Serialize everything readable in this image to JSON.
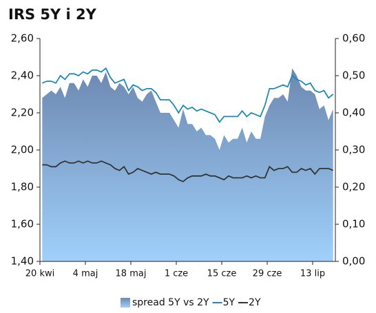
{
  "chart_data": {
    "type": "line",
    "title": "IRS 5Y i 2Y",
    "categories": [
      "20 kwi",
      null,
      null,
      null,
      null,
      null,
      null,
      null,
      null,
      null,
      "4 maj",
      null,
      null,
      null,
      null,
      null,
      null,
      null,
      null,
      null,
      "18 maj",
      null,
      null,
      null,
      null,
      null,
      null,
      null,
      null,
      null,
      "1 cze",
      null,
      null,
      null,
      null,
      null,
      null,
      null,
      null,
      null,
      "15 cze",
      null,
      null,
      null,
      null,
      null,
      null,
      null,
      null,
      null,
      "29 cze",
      null,
      null,
      null,
      null,
      null,
      null,
      null,
      null,
      null,
      "13 lip",
      null,
      null,
      null,
      null
    ],
    "series": [
      {
        "name": "spread 5Y vs 2Y",
        "type": "area",
        "axis": "y2",
        "color": "#7b9bc4",
        "values": [
          0.44,
          0.45,
          0.46,
          0.45,
          0.47,
          0.44,
          0.48,
          0.48,
          0.46,
          0.49,
          0.47,
          0.5,
          0.5,
          0.48,
          0.51,
          0.47,
          0.46,
          0.48,
          0.47,
          0.45,
          0.47,
          0.44,
          0.43,
          0.45,
          0.46,
          0.43,
          0.4,
          0.4,
          0.4,
          0.38,
          0.36,
          0.41,
          0.37,
          0.37,
          0.35,
          0.36,
          0.34,
          0.34,
          0.33,
          0.3,
          0.34,
          0.32,
          0.33,
          0.33,
          0.36,
          0.32,
          0.35,
          0.33,
          0.33,
          0.39,
          0.42,
          0.44,
          0.44,
          0.45,
          0.43,
          0.52,
          0.5,
          0.47,
          0.46,
          0.46,
          0.45,
          0.41,
          0.42,
          0.38,
          0.41
        ]
      },
      {
        "name": "5Y",
        "type": "line",
        "color": "#1a8ab8",
        "values": [
          2.36,
          2.37,
          2.37,
          2.36,
          2.4,
          2.38,
          2.41,
          2.41,
          2.4,
          2.42,
          2.41,
          2.43,
          2.43,
          2.42,
          2.44,
          2.39,
          2.36,
          2.37,
          2.38,
          2.32,
          2.35,
          2.34,
          2.32,
          2.33,
          2.33,
          2.31,
          2.27,
          2.27,
          2.27,
          2.24,
          2.2,
          2.24,
          2.22,
          2.23,
          2.21,
          2.22,
          2.21,
          2.2,
          2.19,
          2.15,
          2.18,
          2.18,
          2.18,
          2.18,
          2.21,
          2.18,
          2.2,
          2.19,
          2.18,
          2.24,
          2.33,
          2.33,
          2.34,
          2.35,
          2.34,
          2.4,
          2.38,
          2.37,
          2.35,
          2.36,
          2.32,
          2.31,
          2.32,
          2.28,
          2.3
        ]
      },
      {
        "name": "2Y",
        "type": "line",
        "color": "#333333",
        "values": [
          1.92,
          1.92,
          1.91,
          1.91,
          1.93,
          1.94,
          1.93,
          1.93,
          1.94,
          1.93,
          1.94,
          1.93,
          1.93,
          1.94,
          1.93,
          1.92,
          1.9,
          1.89,
          1.91,
          1.87,
          1.88,
          1.9,
          1.89,
          1.88,
          1.87,
          1.88,
          1.87,
          1.87,
          1.87,
          1.86,
          1.84,
          1.83,
          1.85,
          1.86,
          1.86,
          1.86,
          1.87,
          1.86,
          1.86,
          1.85,
          1.84,
          1.86,
          1.85,
          1.85,
          1.85,
          1.86,
          1.85,
          1.86,
          1.85,
          1.85,
          1.91,
          1.89,
          1.9,
          1.9,
          1.91,
          1.88,
          1.88,
          1.9,
          1.89,
          1.9,
          1.87,
          1.9,
          1.9,
          1.9,
          1.89
        ]
      }
    ],
    "ylim": [
      1.4,
      2.6
    ],
    "yticks": [
      {
        "value": 1.4,
        "label": "1,40"
      },
      {
        "value": 1.6,
        "label": "1,60"
      },
      {
        "value": 1.8,
        "label": "1,80"
      },
      {
        "value": 2.0,
        "label": "2,00"
      },
      {
        "value": 2.2,
        "label": "2,20"
      },
      {
        "value": 2.4,
        "label": "2,40"
      },
      {
        "value": 2.6,
        "label": "2,60"
      }
    ],
    "y2lim": [
      0,
      0.6
    ],
    "y2ticks": [
      {
        "value": 0,
        "label": "0,00"
      },
      {
        "value": 0.1,
        "label": "0,10"
      },
      {
        "value": 0.2,
        "label": "0,20"
      },
      {
        "value": 0.3,
        "label": "0,30"
      },
      {
        "value": 0.4,
        "label": "0,40"
      },
      {
        "value": 0.5,
        "label": "0,50"
      },
      {
        "value": 0.6,
        "label": "0,60"
      }
    ],
    "grid": false,
    "legend": "bottom"
  }
}
